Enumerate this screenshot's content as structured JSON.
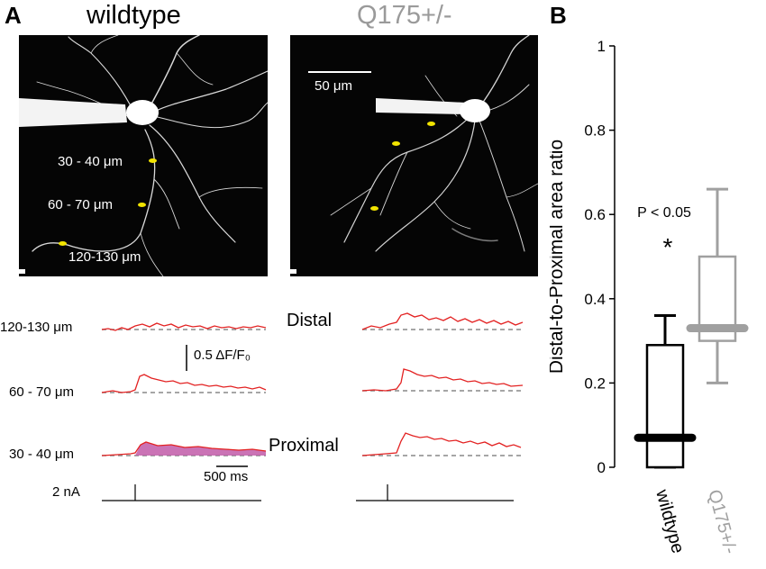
{
  "panel_a": {
    "letter": "A",
    "titles": {
      "wildtype": "wildtype",
      "mutant": "Q175+/-"
    },
    "colors": {
      "mutant_title": "#9a9a9a",
      "marker": "#f2e400",
      "trace": "#e32222",
      "fill": "#c15aa8",
      "baseline": "#888888"
    },
    "wt_image_labels": [
      "30 - 40 μm",
      "60 - 70 μm",
      "120-130 μm"
    ],
    "q175_scale_label": "50 μm",
    "trace_labels": [
      "120-130 μm",
      "60 - 70 μm",
      "30 - 40 μm"
    ],
    "region_labels": {
      "distal": "Distal",
      "proximal": "Proximal"
    },
    "scale_df": "0.5 ΔF/F₀",
    "scale_time": "500 ms",
    "stim_label": "2 nA"
  },
  "panel_b": {
    "letter": "B",
    "p_value": "P < 0.05",
    "significance": "*",
    "chart_data": {
      "type": "box",
      "ylabel": "Distal-to-Proximal area ratio",
      "ylim": [
        0,
        1
      ],
      "yticks": [
        "0",
        "0.2",
        "0.4",
        "0.6",
        "0.8",
        "1"
      ],
      "groups": [
        {
          "name": "wildtype",
          "color": "#000000",
          "min": 0.0,
          "q1": 0.0,
          "median": 0.07,
          "q3": 0.29,
          "max": 0.36
        },
        {
          "name": "Q175+/-",
          "color": "#a0a0a0",
          "min": 0.2,
          "q1": 0.3,
          "median": 0.33,
          "q3": 0.5,
          "max": 0.66
        }
      ]
    }
  }
}
